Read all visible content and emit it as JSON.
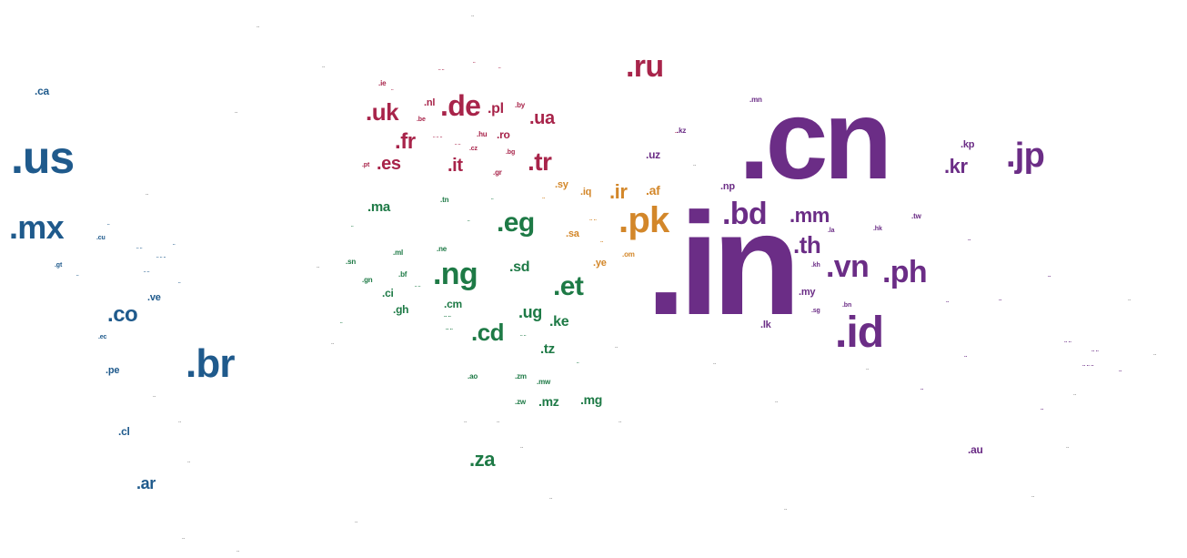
{
  "colors": {
    "americas": "#1f5a8c",
    "europe": "#a8244a",
    "africa": "#1e7a46",
    "middle_east": "#d3872a",
    "asia": "#6b2d86",
    "faint": "#9a9a9a"
  },
  "labels": {
    "us": ".us",
    "mx": ".mx",
    "br": ".br",
    "co": ".co",
    "ca": ".ca",
    "ar": ".ar",
    "cl": ".cl",
    "pe": ".pe",
    "ve": ".ve",
    "cu": ".cu",
    "ec": ".ec",
    "gt": ".gt",
    "ru": ".ru",
    "de": ".de",
    "uk": ".uk",
    "fr": ".fr",
    "es": ".es",
    "it": ".it",
    "tr": ".tr",
    "ua": ".ua",
    "pl": ".pl",
    "nl": ".nl",
    "ie": ".ie",
    "ro": ".ro",
    "by": ".by",
    "hu": ".hu",
    "be": ".be",
    "gr": ".gr",
    "bg": ".bg",
    "cz": ".cz",
    "pt": ".pt",
    "eg": ".eg",
    "ng": ".ng",
    "et": ".et",
    "cd": ".cd",
    "za": ".za",
    "ma": ".ma",
    "sd": ".sd",
    "ug": ".ug",
    "ke": ".ke",
    "tz": ".tz",
    "cm": ".cm",
    "ci": ".ci",
    "gh": ".gh",
    "sn": ".sn",
    "gn": ".gn",
    "ml": ".ml",
    "bf": ".bf",
    "ne": ".ne",
    "tn": ".tn",
    "mg": ".mg",
    "mz": ".mz",
    "zm": ".zm",
    "mw": ".mw",
    "zw": ".zw",
    "ao": ".ao",
    "pk": ".pk",
    "ir": ".ir",
    "af": ".af",
    "sy": ".sy",
    "iq": ".iq",
    "sa": ".sa",
    "ye": ".ye",
    "om": ".om",
    "cn": ".cn",
    "in": ".in",
    "id": ".id",
    "jp": ".jp",
    "kr": ".kr",
    "kp": ".kp",
    "bd": ".bd",
    "mm": ".mm",
    "th": ".th",
    "vn": ".vn",
    "ph": ".ph",
    "my": ".my",
    "lk": ".lk",
    "np": ".np",
    "uz": ".uz",
    "kz": ".kz",
    "mn": ".mn",
    "tw": ".tw",
    "kh": ".kh",
    "la": ".la",
    "au": ".au",
    "hk": ".hk",
    "bn": ".bn",
    "sg": ".sg"
  }
}
